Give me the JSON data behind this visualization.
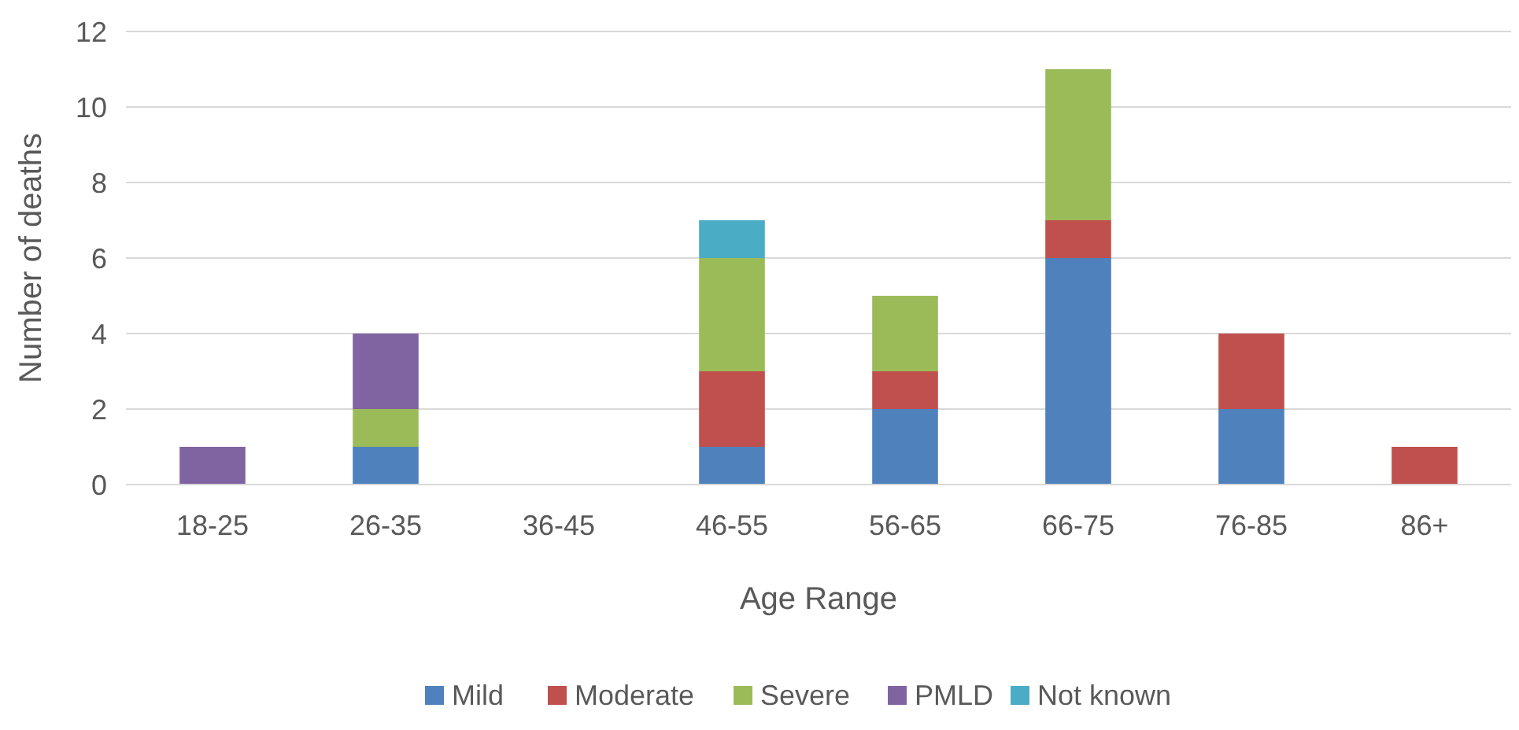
{
  "chart_data": {
    "type": "bar",
    "stacked": true,
    "xlabel": "Age Range",
    "ylabel": "Number of deaths",
    "categories": [
      "18-25",
      "26-35",
      "36-45",
      "46-55",
      "56-65",
      "66-75",
      "76-85",
      "86+"
    ],
    "series": [
      {
        "name": "Mild",
        "color": "#4f81bd",
        "values": [
          0,
          1,
          0,
          1,
          2,
          6,
          2,
          0
        ]
      },
      {
        "name": "Moderate",
        "color": "#c0504d",
        "values": [
          0,
          0,
          0,
          2,
          1,
          1,
          2,
          1
        ]
      },
      {
        "name": "Severe",
        "color": "#9bbb59",
        "values": [
          0,
          1,
          0,
          3,
          2,
          4,
          0,
          0
        ]
      },
      {
        "name": "PMLD",
        "color": "#8064a2",
        "values": [
          1,
          2,
          0,
          0,
          0,
          0,
          0,
          0
        ]
      },
      {
        "name": "Not known",
        "color": "#4bacc6",
        "values": [
          0,
          0,
          0,
          1,
          0,
          0,
          0,
          0
        ]
      }
    ],
    "ylim": [
      0,
      12
    ],
    "yticks": [
      0,
      2,
      4,
      6,
      8,
      10,
      12
    ],
    "grid": "y",
    "legend": "bottom"
  }
}
